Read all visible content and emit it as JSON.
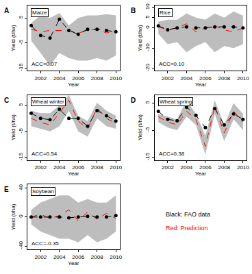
{
  "chart_data": [
    {
      "type": "line",
      "title": "A",
      "subtitle": "Maize",
      "annotations": [
        "ACC=0.07"
      ],
      "x_label": "Year",
      "y_label": "Yield (t/ha)",
      "x": [
        2001,
        2002,
        2003,
        2004,
        2005,
        2006,
        2007,
        2008,
        2009,
        2010
      ],
      "xlim": [
        2000.6,
        2010.4
      ],
      "xticks": [
        2002,
        2004,
        2006,
        2008,
        2010
      ],
      "ylim": [
        -16,
        10
      ],
      "yticks": [
        -15,
        -5,
        5
      ],
      "series": [
        {
          "name": "Prediction",
          "color": "red",
          "line_style": "dashed",
          "values": [
            0.5,
            -0.5,
            0,
            0,
            0,
            -1,
            0,
            0.5,
            -1,
            0
          ],
          "lower": [
            -4,
            -9,
            -14,
            -9,
            -11,
            -12,
            -12,
            -11,
            -12,
            -10
          ],
          "upper": [
            3,
            6,
            5,
            7,
            2,
            5,
            6,
            6,
            6.5,
            6
          ]
        },
        {
          "name": "FAO data",
          "color": "black",
          "line_style": "dashed",
          "marker": "circle",
          "values": [
            2,
            -2,
            -3,
            4.5,
            0,
            -1.5,
            0.5,
            0.5,
            0,
            -0.5
          ]
        }
      ]
    },
    {
      "type": "line",
      "title": "B",
      "subtitle": "Rice",
      "annotations": [
        "ACC=0.10"
      ],
      "x_label": "Year",
      "y_label": "Yield (t/ha)",
      "x": [
        2001,
        2002,
        2003,
        2004,
        2005,
        2006,
        2007,
        2008,
        2009,
        2010
      ],
      "xlim": [
        2000.6,
        2010.4
      ],
      "xticks": [
        2002,
        2004,
        2006,
        2008,
        2010
      ],
      "ylim": [
        -21,
        11
      ],
      "yticks": [
        -20,
        -10,
        0,
        5,
        10
      ],
      "series": [
        {
          "name": "Prediction",
          "color": "red",
          "line_style": "dashed",
          "values": [
            0.5,
            -1,
            0,
            2,
            -2,
            0,
            1,
            -1,
            -2,
            0
          ],
          "lower": [
            -3,
            -8,
            -7,
            -12,
            -9,
            -7,
            -12,
            -9,
            -10,
            -8
          ],
          "upper": [
            3,
            4,
            4,
            7,
            5,
            4,
            7,
            5,
            8,
            6
          ]
        },
        {
          "name": "FAO data",
          "color": "black",
          "line_style": "dashed",
          "marker": "circle",
          "values": [
            1,
            -1,
            0,
            0.5,
            0,
            0,
            0.5,
            0.5,
            0.5,
            0
          ]
        }
      ]
    },
    {
      "type": "line",
      "title": "C",
      "subtitle": "Wheat winter",
      "annotations": [
        "ACC=0.54"
      ],
      "x_label": "Year",
      "y_label": "Yield (t/ha)",
      "x": [
        2001,
        2002,
        2003,
        2004,
        2005,
        2006,
        2007,
        2008,
        2009,
        2010
      ],
      "xlim": [
        2000.6,
        2010.4
      ],
      "xticks": [
        2002,
        2004,
        2006,
        2008,
        2010
      ],
      "ylim": [
        -16,
        9
      ],
      "yticks": [
        -15,
        -5,
        5
      ],
      "series": [
        {
          "name": "Prediction",
          "color": "red",
          "line_style": "dashed",
          "values": [
            0,
            -1.5,
            -2.5,
            2,
            7,
            -1,
            -4,
            4,
            0,
            -2
          ],
          "lower": [
            -3,
            -4,
            -5,
            -3,
            3,
            -5,
            -7,
            0,
            -3,
            -4
          ],
          "upper": [
            3,
            2,
            2,
            5,
            9,
            1,
            -1,
            6,
            3,
            1
          ]
        },
        {
          "name": "FAO data",
          "color": "black",
          "line_style": "dashed",
          "marker": "circle",
          "values": [
            2,
            0,
            -0.5,
            3.5,
            0,
            0,
            -3,
            3,
            1,
            -1
          ]
        }
      ]
    },
    {
      "type": "line",
      "title": "D",
      "subtitle": "Wheat spring",
      "annotations": [
        "ACC=0.38"
      ],
      "x_label": "Year",
      "y_label": "Yield (t/ha)",
      "x": [
        2001,
        2002,
        2003,
        2004,
        2005,
        2006,
        2007,
        2008,
        2009,
        2010
      ],
      "xlim": [
        2000.6,
        2010.4
      ],
      "xticks": [
        2002,
        2004,
        2006,
        2008,
        2010
      ],
      "ylim": [
        -16,
        8
      ],
      "yticks": [
        -15,
        -5,
        5
      ],
      "series": [
        {
          "name": "Prediction",
          "color": "red",
          "line_style": "dashed",
          "values": [
            0,
            -2,
            -3,
            2,
            -1,
            -11,
            4,
            -6,
            2,
            -2
          ],
          "lower": [
            -2,
            -4,
            -5,
            0,
            -3,
            -14,
            1,
            -9,
            -1,
            -5
          ],
          "upper": [
            1,
            0,
            -1,
            6,
            1,
            -7,
            6,
            -3,
            5,
            1
          ]
        },
        {
          "name": "FAO data",
          "color": "black",
          "line_style": "dashed",
          "marker": "circle",
          "values": [
            2,
            -1,
            -1.5,
            3.5,
            0.5,
            -4,
            3,
            -3,
            1,
            -1
          ]
        }
      ]
    },
    {
      "type": "line",
      "title": "E",
      "subtitle": "Soybean",
      "annotations": [
        "ACC=-0.35"
      ],
      "x_label": "Year",
      "y_label": "Yield (t/ha)",
      "x": [
        2001,
        2002,
        2003,
        2004,
        2005,
        2006,
        2007,
        2008,
        2009,
        2010
      ],
      "xlim": [
        2000.6,
        2010.4
      ],
      "xticks": [
        2002,
        2004,
        2006,
        2008,
        2010
      ],
      "ylim": [
        -45,
        45
      ],
      "yticks": [
        -40,
        0,
        40
      ],
      "series": [
        {
          "name": "Prediction",
          "color": "red",
          "line_style": "dashed",
          "values": [
            0,
            4,
            -2,
            2,
            10,
            -5,
            7,
            -3,
            5,
            -2
          ],
          "lower": [
            -10,
            -20,
            -25,
            -30,
            -30,
            -35,
            -25,
            -35,
            -30,
            -20
          ],
          "upper": [
            10,
            20,
            25,
            30,
            30,
            20,
            25,
            20,
            20,
            30
          ]
        },
        {
          "name": "FAO data",
          "color": "black",
          "line_style": "dashed",
          "marker": "circle",
          "values": [
            0,
            0,
            0,
            0,
            -1,
            0,
            1,
            0,
            0,
            2
          ]
        }
      ]
    }
  ],
  "note": [
    {
      "text": "Black: FAO data",
      "color": "black"
    },
    {
      "text": "Red: Prediction",
      "color": "red"
    }
  ]
}
